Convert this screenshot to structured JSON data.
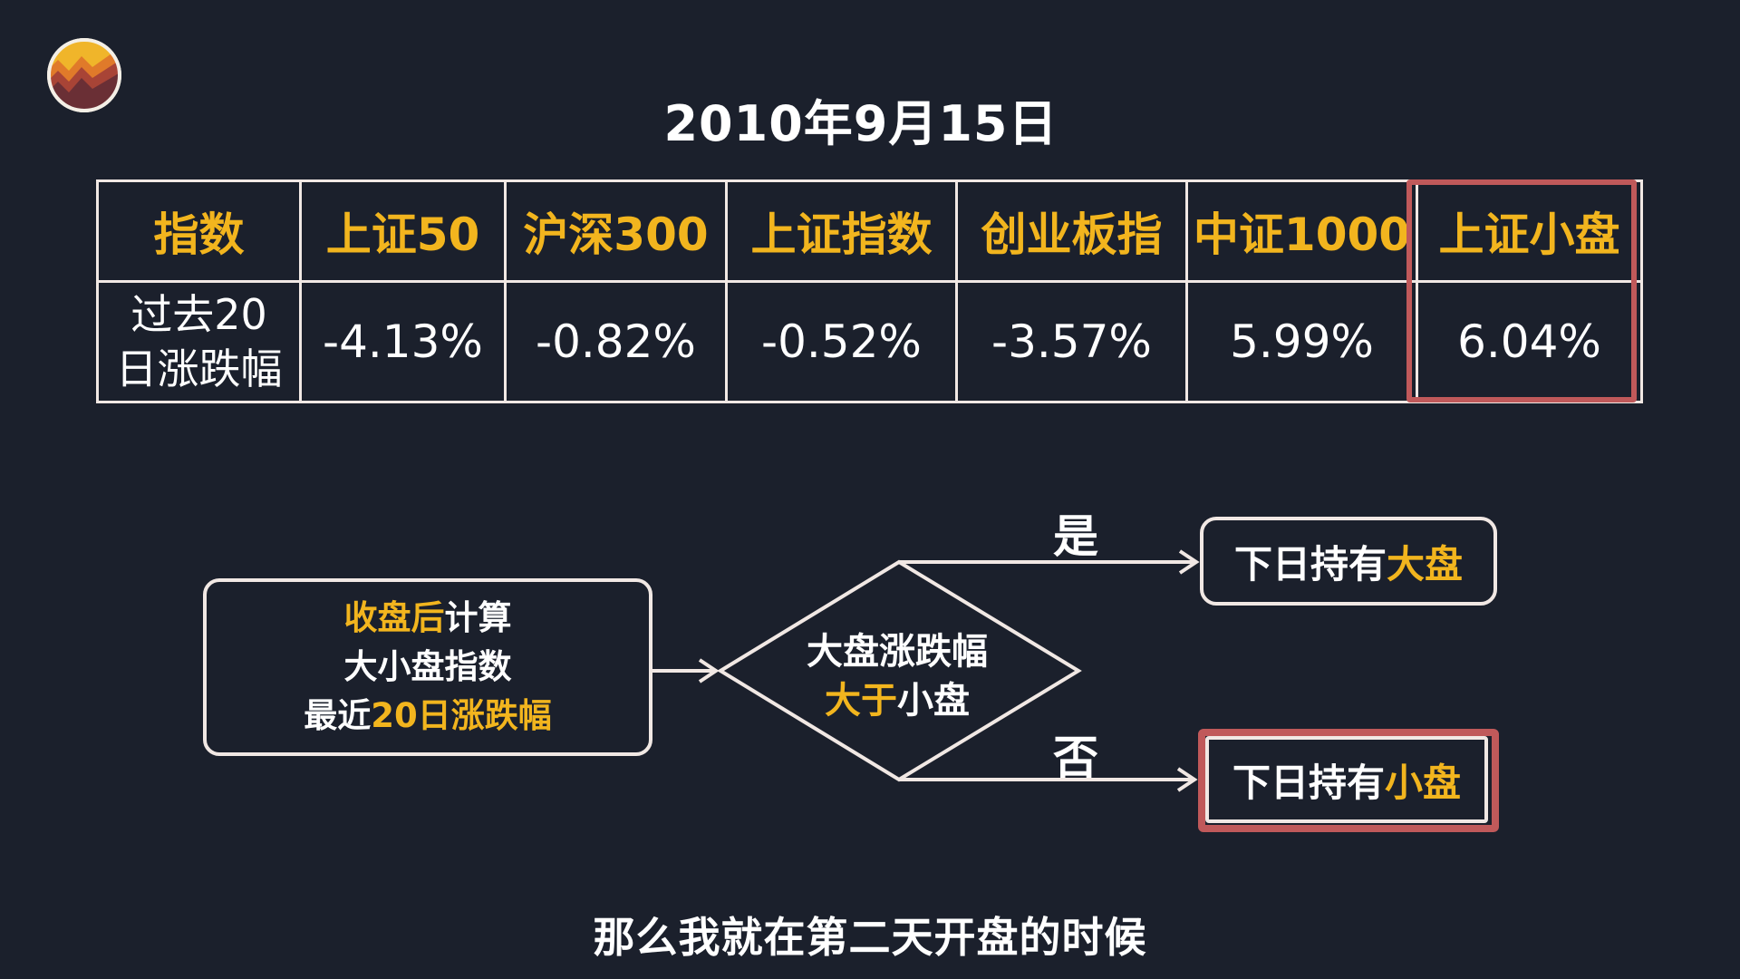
{
  "title": "2010年9月15日",
  "table": {
    "header": [
      "指数",
      "上证50",
      "沪深300",
      "上证指数",
      "创业板指",
      "中证1000",
      "上证小盘"
    ],
    "row_label_line1": "过去20",
    "row_label_line2": "日涨跌幅",
    "values": [
      "-4.13%",
      "-0.82%",
      "-0.52%",
      "-3.57%",
      "5.99%",
      "6.04%"
    ],
    "highlighted_column": "上证小盘"
  },
  "flow": {
    "start": {
      "line1_a": "收盘后",
      "line1_b": "计算",
      "line2": "大小盘指数",
      "line3_a": "最近",
      "line3_b": "20日涨跌幅"
    },
    "decision": {
      "line1": "大盘涨跌幅",
      "line2_a": "大于",
      "line2_b": "小盘"
    },
    "yes_label": "是",
    "no_label": "否",
    "yes_outcome": {
      "prefix": "下日持有",
      "highlight": "大盘"
    },
    "no_outcome": {
      "prefix": "下日持有",
      "highlight": "小盘"
    }
  },
  "caption": "那么我就在第二天开盘的时候",
  "colors": {
    "background": "#1b202c",
    "accent_yellow": "#f2b51e",
    "highlight_red": "#c0595a",
    "line": "#f1e8e4"
  },
  "icons": {
    "logo": "chart-badge-logo-icon"
  }
}
